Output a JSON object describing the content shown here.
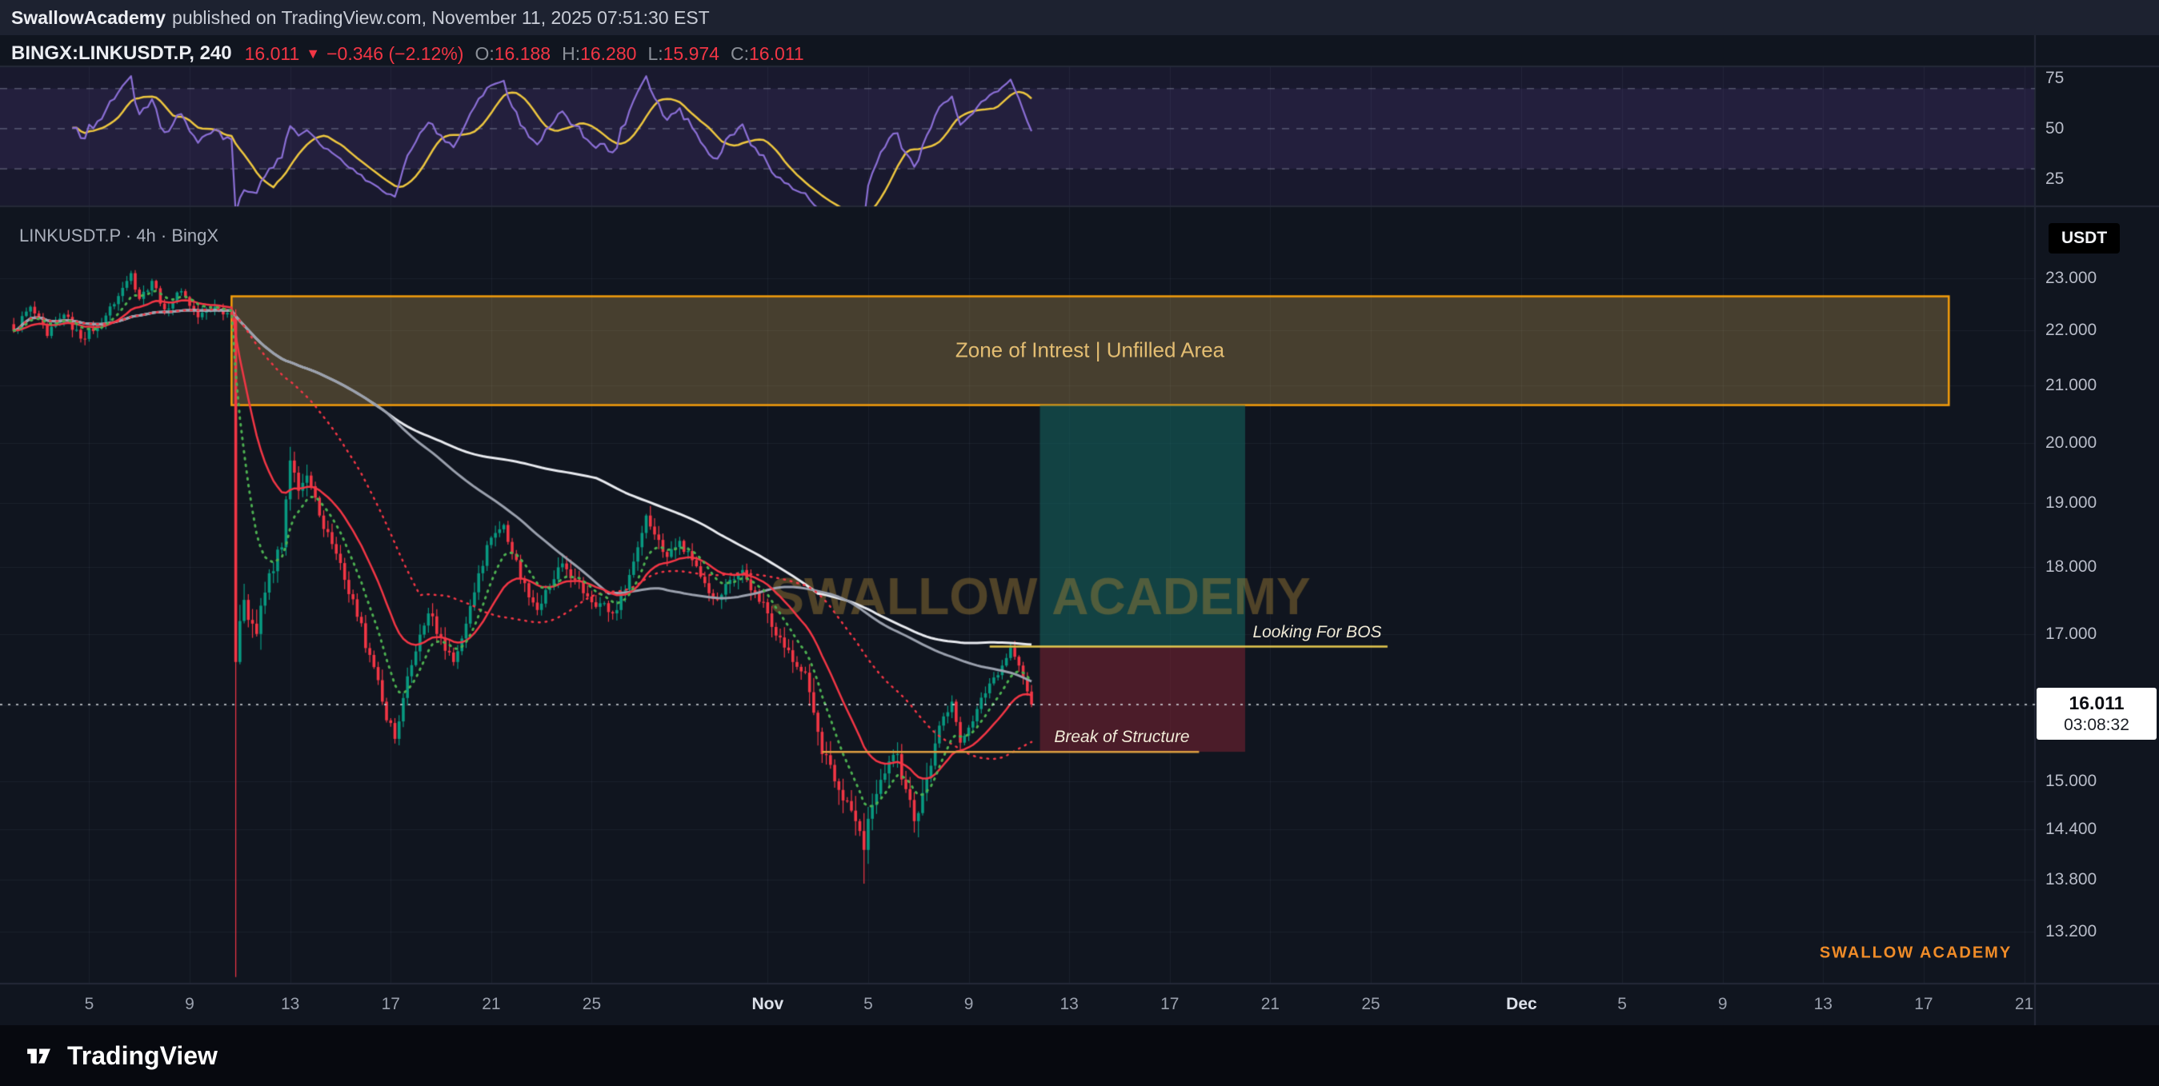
{
  "header": {
    "publisher": "SwallowAcademy",
    "published_text": "published on TradingView.com, November 11, 2025 07:51:30 EST"
  },
  "symbol_bar": {
    "symbol_text": "BINGX:LINKUSDT.P, 240",
    "last_price": "16.011",
    "change_dir": "▼",
    "change_text": "−0.346 (−2.12%)",
    "o_label": "O:",
    "o": "16.188",
    "h_label": "H:",
    "h": "16.280",
    "l_label": "L:",
    "l": "15.974",
    "c_label": "C:",
    "c": "16.011"
  },
  "main_pane_label": "LINKUSDT.P · 4h · BingX",
  "watermark": "SWALLOW ACADEMY",
  "branding": "SWALLOW ACADEMY",
  "footer": {
    "brand": "TradingView"
  },
  "axis": {
    "currency_label": "USDT",
    "price_badge": {
      "price": "16.011",
      "countdown": "03:08:32"
    }
  },
  "colors": {
    "background": "#10151f",
    "up": "#089981",
    "down": "#f23645",
    "grid": "rgba(170,180,210,0.07)",
    "separator": "#242938",
    "zone_border": "#f59e0b",
    "watermark": "rgba(170,132,52,0.42)",
    "price_line": "#dcdfe6"
  },
  "chart_data": {
    "type": "candlestick",
    "symbol": "LINKUSDT.P",
    "exchange": "BingX",
    "timeframe": "4h",
    "price_scale": "log",
    "bar_count": 244,
    "bars_per_day": 6,
    "first_bar_date": "2025-10-02",
    "main_pane_price_range": {
      "top": 24.45,
      "bottom": 12.63
    },
    "current_price": 16.011,
    "last_candle": {
      "o": 16.188,
      "h": 16.28,
      "l": 15.974,
      "c": 16.011
    },
    "close_waypoints": [
      [
        0,
        22.0
      ],
      [
        4,
        22.45
      ],
      [
        8,
        21.9
      ],
      [
        12,
        22.3
      ],
      [
        16,
        21.85
      ],
      [
        20,
        22.1
      ],
      [
        24,
        22.5
      ],
      [
        28,
        23.1
      ],
      [
        30,
        22.6
      ],
      [
        33,
        22.95
      ],
      [
        36,
        22.4
      ],
      [
        40,
        22.75
      ],
      [
        44,
        22.25
      ],
      [
        48,
        22.45
      ],
      [
        52,
        22.3
      ],
      [
        53,
        16.6
      ],
      [
        55,
        17.5
      ],
      [
        58,
        17.0
      ],
      [
        61,
        17.9
      ],
      [
        64,
        18.3
      ],
      [
        66,
        19.7
      ],
      [
        68,
        19.2
      ],
      [
        70,
        19.45
      ],
      [
        73,
        18.8
      ],
      [
        76,
        18.35
      ],
      [
        79,
        17.8
      ],
      [
        82,
        17.25
      ],
      [
        85,
        16.7
      ],
      [
        88,
        16.05
      ],
      [
        91,
        15.55
      ],
      [
        93,
        16.1
      ],
      [
        96,
        16.75
      ],
      [
        99,
        17.3
      ],
      [
        102,
        16.95
      ],
      [
        105,
        16.6
      ],
      [
        108,
        17.15
      ],
      [
        111,
        17.9
      ],
      [
        114,
        18.45
      ],
      [
        117,
        18.65
      ],
      [
        119,
        18.2
      ],
      [
        122,
        17.75
      ],
      [
        125,
        17.35
      ],
      [
        128,
        17.7
      ],
      [
        131,
        18.05
      ],
      [
        134,
        17.8
      ],
      [
        137,
        17.55
      ],
      [
        140,
        17.45
      ],
      [
        143,
        17.3
      ],
      [
        146,
        17.65
      ],
      [
        149,
        18.3
      ],
      [
        151,
        18.8
      ],
      [
        153,
        18.5
      ],
      [
        156,
        18.15
      ],
      [
        159,
        18.4
      ],
      [
        162,
        18.1
      ],
      [
        165,
        17.75
      ],
      [
        168,
        17.5
      ],
      [
        171,
        17.8
      ],
      [
        174,
        17.95
      ],
      [
        177,
        17.6
      ],
      [
        180,
        17.3
      ],
      [
        183,
        16.95
      ],
      [
        186,
        16.6
      ],
      [
        189,
        16.45
      ],
      [
        191,
        15.9
      ],
      [
        193,
        15.35
      ],
      [
        196,
        15.0
      ],
      [
        199,
        14.75
      ],
      [
        201,
        14.5
      ],
      [
        203,
        14.15
      ],
      [
        205,
        14.7
      ],
      [
        208,
        15.1
      ],
      [
        211,
        15.35
      ],
      [
        213,
        14.9
      ],
      [
        215,
        14.5
      ],
      [
        217,
        14.85
      ],
      [
        219,
        15.2
      ],
      [
        222,
        15.85
      ],
      [
        224,
        16.05
      ],
      [
        226,
        15.5
      ],
      [
        228,
        15.7
      ],
      [
        230,
        15.95
      ],
      [
        233,
        16.3
      ],
      [
        236,
        16.55
      ],
      [
        238,
        16.8
      ],
      [
        240,
        16.55
      ],
      [
        242,
        16.19
      ],
      [
        243,
        16.011
      ]
    ],
    "volatility_segments": [
      {
        "from": 0,
        "to": 52,
        "amp": 0.16
      },
      {
        "from": 53,
        "to": 70,
        "amp": 0.3
      },
      {
        "from": 71,
        "to": 189,
        "amp": 0.18
      },
      {
        "from": 190,
        "to": 221,
        "amp": 0.24
      },
      {
        "from": 222,
        "to": 243,
        "amp": 0.11
      }
    ],
    "candle_overrides": [
      {
        "bar": 53,
        "o": 22.25,
        "h": 22.4,
        "l": 12.7,
        "c": 16.6
      },
      {
        "bar": 203,
        "h": 14.6,
        "l": 13.75
      },
      {
        "bar": 243,
        "o": 16.188,
        "h": 16.28,
        "l": 15.974,
        "c": 16.011
      }
    ],
    "moving_averages": [
      {
        "name": "sma-140",
        "type": "sma",
        "period": 140,
        "color": "#e8eaef",
        "width": 3,
        "dotted": false
      },
      {
        "name": "sma-90",
        "type": "sma",
        "period": 90,
        "color": "#9aa0ad",
        "width": 3,
        "dotted": false
      },
      {
        "name": "sma-45",
        "type": "sma",
        "period": 45,
        "color": "#f23645",
        "width": 2.5,
        "dotted": true
      },
      {
        "name": "ema-21",
        "type": "ema",
        "period": 21,
        "color": "#f23645",
        "width": 2.5,
        "dotted": false
      },
      {
        "name": "ema-9",
        "type": "ema",
        "period": 9,
        "color": "#4caf50",
        "width": 3,
        "dotted": true
      }
    ],
    "rsi": {
      "period": 14,
      "ma_period": 10,
      "color": "#8b6fd6",
      "ma_color": "#eec73f",
      "range_top": 81,
      "range_bottom": 11.35,
      "levels": [
        70,
        50,
        30
      ],
      "tick_labels": [
        {
          "label": "75",
          "value": 75
        },
        {
          "label": "50",
          "value": 50
        },
        {
          "label": "25",
          "value": 25
        }
      ]
    },
    "price_ticks": [
      {
        "label": "23.000",
        "value": 23.0
      },
      {
        "label": "22.000",
        "value": 22.0
      },
      {
        "label": "21.000",
        "value": 21.0
      },
      {
        "label": "20.000",
        "value": 20.0
      },
      {
        "label": "19.000",
        "value": 19.0
      },
      {
        "label": "18.000",
        "value": 18.0
      },
      {
        "label": "17.000",
        "value": 17.0
      },
      {
        "label": "16.000",
        "value": 16.0
      },
      {
        "label": "15.000",
        "value": 15.0
      },
      {
        "label": "14.400",
        "value": 14.4
      },
      {
        "label": "13.800",
        "value": 13.8
      },
      {
        "label": "13.200",
        "value": 13.2
      }
    ],
    "time_ticks": [
      {
        "label": "5",
        "bar": 18
      },
      {
        "label": "9",
        "bar": 42
      },
      {
        "label": "13",
        "bar": 66
      },
      {
        "label": "17",
        "bar": 90
      },
      {
        "label": "21",
        "bar": 114
      },
      {
        "label": "25",
        "bar": 138
      },
      {
        "label": "Nov",
        "bar": 180,
        "major": true
      },
      {
        "label": "5",
        "bar": 204
      },
      {
        "label": "9",
        "bar": 228
      },
      {
        "label": "13",
        "bar": 252
      },
      {
        "label": "17",
        "bar": 276
      },
      {
        "label": "21",
        "bar": 300
      },
      {
        "label": "25",
        "bar": 324
      },
      {
        "label": "Dec",
        "bar": 360,
        "major": true
      },
      {
        "label": "5",
        "bar": 384
      },
      {
        "label": "9",
        "bar": 408
      },
      {
        "label": "13",
        "bar": 432
      },
      {
        "label": "17",
        "bar": 456
      },
      {
        "label": "21",
        "bar": 480
      }
    ],
    "zones": [
      {
        "name": "zone-of-interest",
        "bar1": 52,
        "bar2": 462,
        "price_top": 22.65,
        "price_bottom": 20.65,
        "fill": "rgba(199,162,86,0.30)",
        "border": "#f59e0b",
        "label": "Zone of Intrest | Unfilled Area"
      },
      {
        "name": "target-zone",
        "bar1": 245,
        "bar2": 294,
        "price_top": 20.65,
        "price_bottom": 16.82,
        "fill": "rgba(20,112,104,0.50)"
      },
      {
        "name": "stop-zone",
        "bar1": 245,
        "bar2": 294,
        "price_top": 16.82,
        "price_bottom": 15.38,
        "fill": "rgba(134,36,52,0.50)"
      }
    ],
    "hlines": [
      {
        "name": "looking-for-bos-line",
        "price": 16.82,
        "bar1": 233,
        "bar2": 328,
        "color": "#e5c84f",
        "label": "Looking For BOS"
      },
      {
        "name": "break-of-structure-line",
        "price": 15.38,
        "bar1": 193,
        "bar2": 283,
        "color": "#dd9e40",
        "label": "Break of Structure"
      }
    ]
  }
}
